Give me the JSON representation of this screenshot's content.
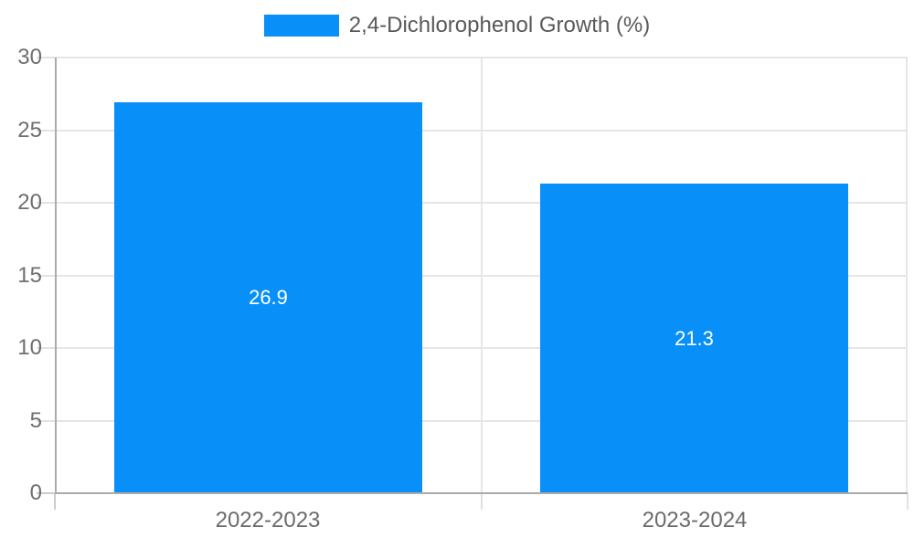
{
  "chart_data": {
    "type": "bar",
    "title": "",
    "categories": [
      "2022-2023",
      "2023-2024"
    ],
    "series": [
      {
        "name": "2,4-Dichlorophenol Growth (%)",
        "values": [
          26.9,
          21.3
        ]
      }
    ],
    "bar_value_labels": [
      "26.9",
      "21.3"
    ],
    "xlabel": "",
    "ylabel": "",
    "ylim": [
      0,
      30
    ],
    "y_ticks": [
      0,
      5,
      10,
      15,
      20,
      25,
      30
    ],
    "grid": true,
    "legend_position": "top-center"
  },
  "colors": {
    "bar": "#0890f8",
    "grid": "#e6e6e6",
    "axis": "#ababab",
    "tick": "#cccccc",
    "axis_text": "#6e6e6e",
    "legend_text": "#595959",
    "bar_label_text": "#ffffff",
    "background": "#ffffff"
  }
}
